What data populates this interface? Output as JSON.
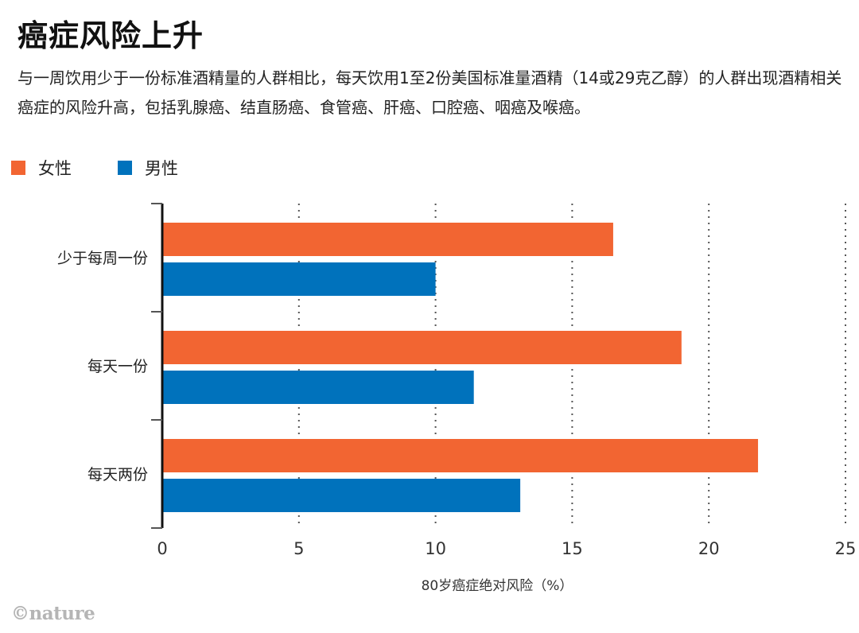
{
  "title": "癌症风险上升",
  "subtitle": "与一周饮用少于一份标准酒精量的人群相比，每天饮用1至2份美国标准量酒精（14或29克乙醇）的人群出现酒精相关癌症的风险升高，包括乳腺癌、结直肠癌、食管癌、肝癌、口腔癌、咽癌及喉癌。",
  "logo": "©nature",
  "chart_data": {
    "type": "bar",
    "orientation": "horizontal",
    "categories": [
      "少于每周一份",
      "每天一份",
      "每天两份"
    ],
    "series": [
      {
        "name": "女性",
        "color": "#f26532",
        "values": [
          16.5,
          19.0,
          21.8
        ]
      },
      {
        "name": "男性",
        "color": "#0072bc",
        "values": [
          10.0,
          11.4,
          13.1
        ]
      }
    ],
    "xlabel": "80岁癌症绝对风险（%）",
    "xlim": [
      0,
      25
    ],
    "xticks": [
      "0",
      "5",
      "10",
      "15",
      "20",
      "25"
    ],
    "grid": "vertical dotted",
    "legend": "top-left"
  }
}
